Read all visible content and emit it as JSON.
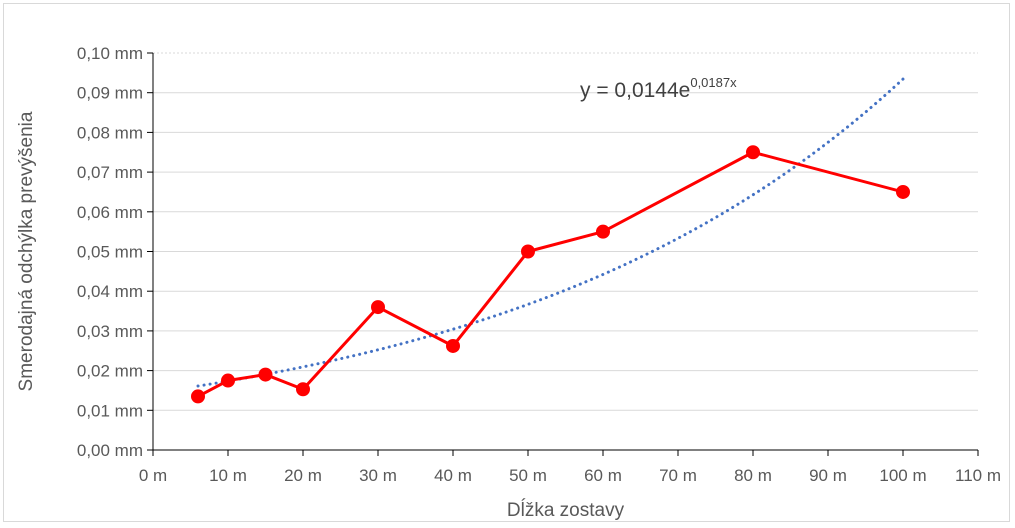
{
  "chart_data": {
    "type": "scatter",
    "title": "",
    "xlabel": "Dĺžka zostavy",
    "ylabel": "Smerodajná odchýlka prevýšenia",
    "xlim": [
      0,
      110
    ],
    "ylim": [
      0,
      0.1
    ],
    "x_ticks": [
      0,
      10,
      20,
      30,
      40,
      50,
      60,
      70,
      80,
      90,
      100,
      110
    ],
    "x_tick_labels": [
      "0 m",
      "10 m",
      "20 m",
      "30 m",
      "40 m",
      "50 m",
      "60 m",
      "70 m",
      "80 m",
      "90 m",
      "100 m",
      "110 m"
    ],
    "y_ticks": [
      0,
      0.01,
      0.02,
      0.03,
      0.04,
      0.05,
      0.06,
      0.07,
      0.08,
      0.09,
      0.1
    ],
    "y_tick_labels": [
      "0,00 mm",
      "0,01 mm",
      "0,02 mm",
      "0,03 mm",
      "0,04 mm",
      "0,05 mm",
      "0,06 mm",
      "0,07 mm",
      "0,08 mm",
      "0,09 mm",
      "0,10 mm"
    ],
    "grid": true,
    "series": [
      {
        "style": "line-markers",
        "color": "#ff0000",
        "x": [
          6,
          10,
          15,
          20,
          30,
          40,
          50,
          60,
          80,
          100
        ],
        "y": [
          0.0135,
          0.0175,
          0.019,
          0.0153,
          0.036,
          0.0262,
          0.05,
          0.055,
          0.075,
          0.065
        ]
      }
    ],
    "trendline": {
      "type": "exponential",
      "a": 0.0144,
      "b": 0.0187,
      "x_range": [
        6,
        100
      ],
      "color": "#4472c4",
      "style": "dotted",
      "equation_base": "y = 0,0144e",
      "equation_exponent": "0,0187x"
    }
  }
}
